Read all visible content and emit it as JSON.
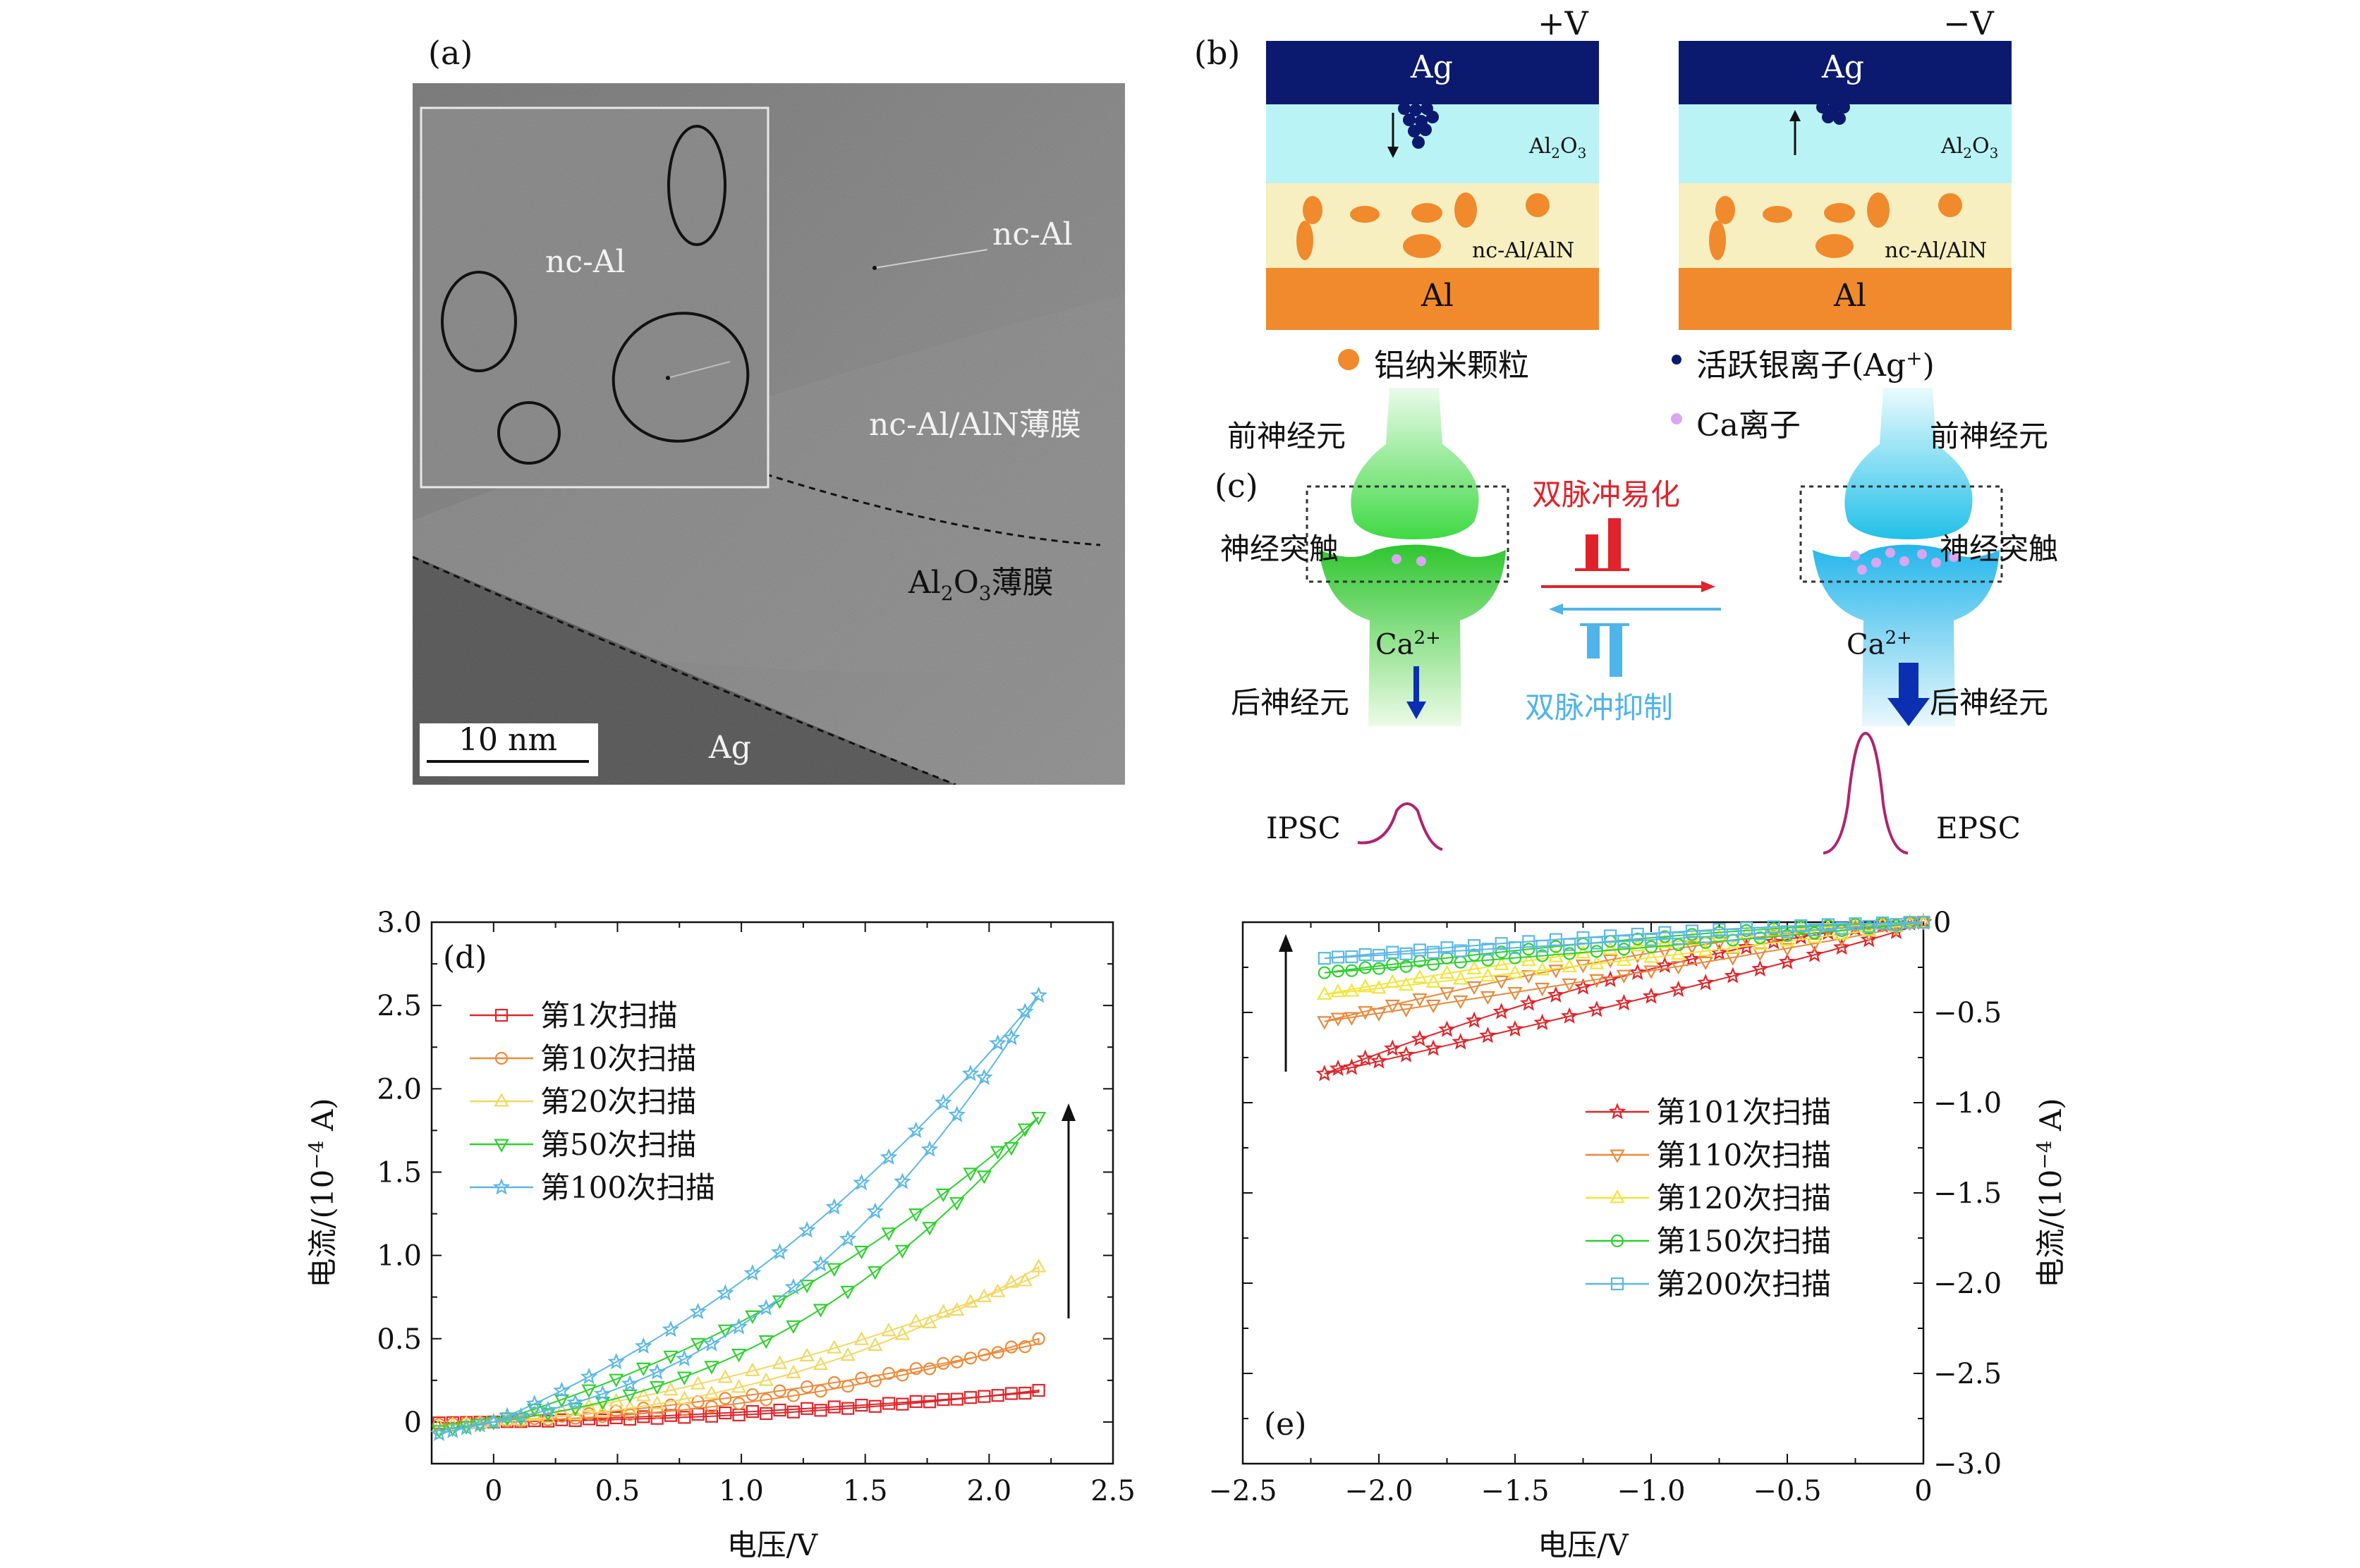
{
  "panel_a": {
    "tag": "(a)",
    "inset_label": "nc-Al",
    "label_ncal": "nc-Al",
    "label_film": "nc-Al/AlN薄膜",
    "label_al2o3_base": "Al",
    "label_al2o3_sub1": "2",
    "label_al2o3_o": "O",
    "label_al2o3_sub2": "3",
    "label_al2o3_suffix": "薄膜",
    "label_ag": "Ag",
    "scale_bar": "10 nm"
  },
  "panel_b": {
    "tag": "(b)",
    "left_bias": "+V",
    "right_bias": "−V",
    "ag": "Ag",
    "al": "Al",
    "al2o3_base": "Al",
    "al2o3_sub1": "2",
    "al2o3_o": "O",
    "al2o3_sub2": "3",
    "ncal_aln": "nc-Al/AlN",
    "legend_al_np": "铝纳米颗粒",
    "legend_ag_ion": "活跃银离子(Ag",
    "legend_ag_sup": "+",
    "legend_ag_close": ")",
    "legend_ca": "Ca离子"
  },
  "panel_c": {
    "tag": "(c)",
    "pre_neuron_left": "前神经元",
    "pre_neuron_right": "前神经元",
    "synapse_left": "神经突触",
    "synapse_right": "神经突触",
    "post_neuron_left": "后神经元",
    "post_neuron_right": "后神经元",
    "ca_left": "Ca",
    "ca_right": "Ca",
    "ca_sup": "2+",
    "facilitation": "双脉冲易化",
    "inhibition": "双脉冲抑制",
    "ipsc": "IPSC",
    "epsc": "EPSC"
  },
  "chart_data": [
    {
      "type": "scatter",
      "panel": "(d)",
      "xlabel": "电压/V",
      "ylabel": "电流/(10−4 A)",
      "ylabel_parts": {
        "pre": "电流/(10",
        "sup": "−4",
        "post": " A)"
      },
      "xlim": [
        -0.25,
        2.5
      ],
      "ylim": [
        -0.25,
        3.0
      ],
      "xticks": [
        0,
        0.5,
        1.0,
        1.5,
        2.0,
        2.5
      ],
      "xtick_labels": [
        "0",
        "0.5",
        "1.0",
        "1.5",
        "2.0",
        "2.5"
      ],
      "yticks": [
        0,
        0.5,
        1.0,
        1.5,
        2.0,
        2.5,
        3.0
      ],
      "ytick_labels": [
        "0",
        "0.5",
        "1.0",
        "1.5",
        "2.0",
        "2.5",
        "3.0"
      ],
      "legend_position": "upper-left",
      "series": [
        {
          "name": "第1次扫描",
          "marker": "square",
          "color": "#e0252a",
          "vmax": 2.2,
          "up": 0.19,
          "down": 0.18
        },
        {
          "name": "第10次扫描",
          "marker": "circle",
          "color": "#ef8a3a",
          "vmax": 2.2,
          "up": 0.5,
          "down": 0.47
        },
        {
          "name": "第20次扫描",
          "marker": "triangle-up",
          "color": "#f2d862",
          "vmax": 2.2,
          "up": 0.93,
          "down": 0.88
        },
        {
          "name": "第50次扫描",
          "marker": "triangle-down",
          "color": "#2ed12e",
          "vmax": 2.2,
          "up": 1.83,
          "down": 1.83
        },
        {
          "name": "第100次扫描",
          "marker": "star",
          "color": "#5cb8e6",
          "vmax": 2.2,
          "up": 2.56,
          "down": 2.56
        }
      ],
      "arrow": "up"
    },
    {
      "type": "scatter",
      "panel": "(e)",
      "xlabel": "电压/V",
      "ylabel": "电流/(10−4 A)",
      "ylabel_parts": {
        "pre": "电流/(10",
        "sup": "−4",
        "post": " A)"
      },
      "xlim": [
        -2.5,
        0
      ],
      "ylim": [
        -3.0,
        0
      ],
      "xticks": [
        -2.5,
        -2.0,
        -1.5,
        -1.0,
        -0.5,
        0
      ],
      "xtick_labels": [
        "−2.5",
        "−2.0",
        "−1.5",
        "−1.0",
        "−0.5",
        "0"
      ],
      "yticks": [
        0,
        -0.5,
        -1.0,
        -1.5,
        -2.0,
        -2.5,
        -3.0
      ],
      "ytick_labels": [
        "0",
        "−0.5",
        "−1.0",
        "−1.5",
        "−2.0",
        "−2.5",
        "−3.0"
      ],
      "legend_position": "center-right",
      "series": [
        {
          "name": "第101次扫描",
          "marker": "star",
          "color": "#e0252a",
          "vmin": -2.2,
          "end": -0.84
        },
        {
          "name": "第110次扫描",
          "marker": "triangle-down",
          "color": "#e88a3e",
          "vmin": -2.2,
          "end": -0.55
        },
        {
          "name": "第120次扫描",
          "marker": "triangle-up",
          "color": "#f2e43a",
          "vmin": -2.2,
          "end": -0.4
        },
        {
          "name": "第150次扫描",
          "marker": "circle",
          "color": "#2ed12e",
          "vmin": -2.2,
          "end": -0.28
        },
        {
          "name": "第200次扫描",
          "marker": "square",
          "color": "#5cb8e6",
          "vmin": -2.2,
          "end": -0.2
        }
      ],
      "arrow": "up"
    }
  ]
}
